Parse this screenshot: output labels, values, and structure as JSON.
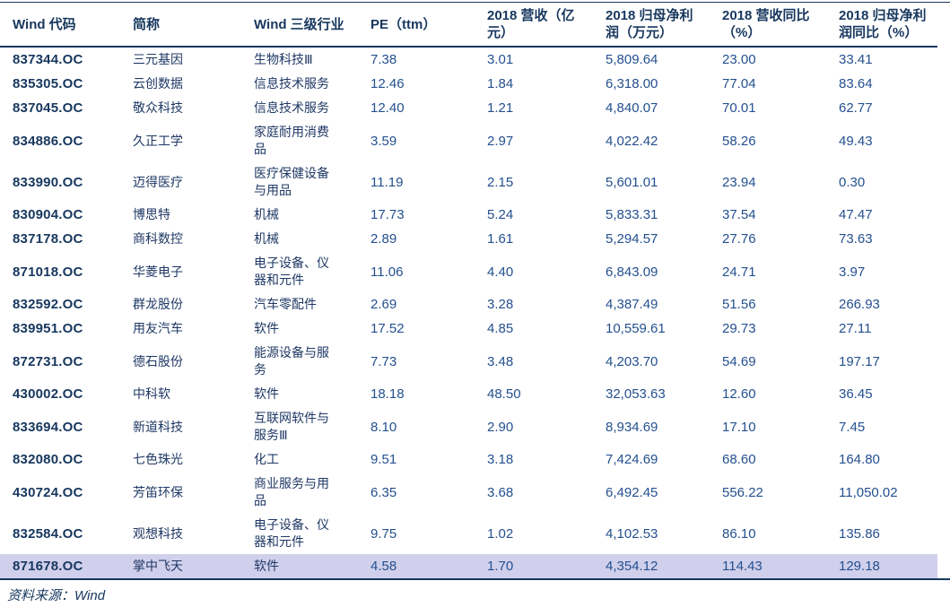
{
  "table": {
    "columns": [
      {
        "label": "Wind 代码"
      },
      {
        "label": "简称"
      },
      {
        "label": "Wind 三级行业"
      },
      {
        "label": "PE（ttm）"
      },
      {
        "label": "2018 营收（亿元）"
      },
      {
        "label": "2018 归母净利润（万元）"
      },
      {
        "label": "2018 营收同比（%）"
      },
      {
        "label": "2018 归母净利润同比（%）"
      }
    ],
    "highlighted_row_index": 16,
    "rows": [
      {
        "code": "837344.OC",
        "name": "三元基因",
        "industry": "生物科技Ⅲ",
        "pe": "7.38",
        "revenue": "3.01",
        "profit": "5,809.64",
        "revenue_yoy": "23.00",
        "profit_yoy": "33.41"
      },
      {
        "code": "835305.OC",
        "name": "云创数据",
        "industry": "信息技术服务",
        "pe": "12.46",
        "revenue": "1.84",
        "profit": "6,318.00",
        "revenue_yoy": "77.04",
        "profit_yoy": "83.64"
      },
      {
        "code": "837045.OC",
        "name": "敬众科技",
        "industry": "信息技术服务",
        "pe": "12.40",
        "revenue": "1.21",
        "profit": "4,840.07",
        "revenue_yoy": "70.01",
        "profit_yoy": "62.77"
      },
      {
        "code": "834886.OC",
        "name": "久正工学",
        "industry": "家庭耐用消费品",
        "pe": "3.59",
        "revenue": "2.97",
        "profit": "4,022.42",
        "revenue_yoy": "58.26",
        "profit_yoy": "49.43"
      },
      {
        "code": "833990.OC",
        "name": "迈得医疗",
        "industry": "医疗保健设备与用品",
        "pe": "11.19",
        "revenue": "2.15",
        "profit": "5,601.01",
        "revenue_yoy": "23.94",
        "profit_yoy": "0.30"
      },
      {
        "code": "830904.OC",
        "name": "博思特",
        "industry": "机械",
        "pe": "17.73",
        "revenue": "5.24",
        "profit": "5,833.31",
        "revenue_yoy": "37.54",
        "profit_yoy": "47.47"
      },
      {
        "code": "837178.OC",
        "name": "商科数控",
        "industry": "机械",
        "pe": "2.89",
        "revenue": "1.61",
        "profit": "5,294.57",
        "revenue_yoy": "27.76",
        "profit_yoy": "73.63"
      },
      {
        "code": "871018.OC",
        "name": "华菱电子",
        "industry": "电子设备、仪器和元件",
        "pe": "11.06",
        "revenue": "4.40",
        "profit": "6,843.09",
        "revenue_yoy": "24.71",
        "profit_yoy": "3.97"
      },
      {
        "code": "832592.OC",
        "name": "群龙股份",
        "industry": "汽车零配件",
        "pe": "2.69",
        "revenue": "3.28",
        "profit": "4,387.49",
        "revenue_yoy": "51.56",
        "profit_yoy": "266.93"
      },
      {
        "code": "839951.OC",
        "name": "用友汽车",
        "industry": "软件",
        "pe": "17.52",
        "revenue": "4.85",
        "profit": "10,559.61",
        "revenue_yoy": "29.73",
        "profit_yoy": "27.11"
      },
      {
        "code": "872731.OC",
        "name": "德石股份",
        "industry": "能源设备与服务",
        "pe": "7.73",
        "revenue": "3.48",
        "profit": "4,203.70",
        "revenue_yoy": "54.69",
        "profit_yoy": "197.17"
      },
      {
        "code": "430002.OC",
        "name": "中科软",
        "industry": "软件",
        "pe": "18.18",
        "revenue": "48.50",
        "profit": "32,053.63",
        "revenue_yoy": "12.60",
        "profit_yoy": "36.45"
      },
      {
        "code": "833694.OC",
        "name": "新道科技",
        "industry": "互联网软件与服务Ⅲ",
        "pe": "8.10",
        "revenue": "2.90",
        "profit": "8,934.69",
        "revenue_yoy": "17.10",
        "profit_yoy": "7.45"
      },
      {
        "code": "832080.OC",
        "name": "七色珠光",
        "industry": "化工",
        "pe": "9.51",
        "revenue": "3.18",
        "profit": "7,424.69",
        "revenue_yoy": "68.60",
        "profit_yoy": "164.80"
      },
      {
        "code": "430724.OC",
        "name": "芳笛环保",
        "industry": "商业服务与用品",
        "pe": "6.35",
        "revenue": "3.68",
        "profit": "6,492.45",
        "revenue_yoy": "556.22",
        "profit_yoy": "11,050.02"
      },
      {
        "code": "832584.OC",
        "name": "观想科技",
        "industry": "电子设备、仪器和元件",
        "pe": "9.75",
        "revenue": "1.02",
        "profit": "4,102.53",
        "revenue_yoy": "86.10",
        "profit_yoy": "135.86"
      },
      {
        "code": "871678.OC",
        "name": "掌中飞天",
        "industry": "软件",
        "pe": "4.58",
        "revenue": "1.70",
        "profit": "4,354.12",
        "revenue_yoy": "114.43",
        "profit_yoy": "129.18"
      }
    ]
  },
  "footer": {
    "source_label": "资料来源：Wind"
  },
  "colors": {
    "header_text": "#17375E",
    "number_text": "#24508F",
    "name_text": "#1F3864",
    "border_rule": "#17375E",
    "highlight_row_bg": "#D0D0EC"
  }
}
